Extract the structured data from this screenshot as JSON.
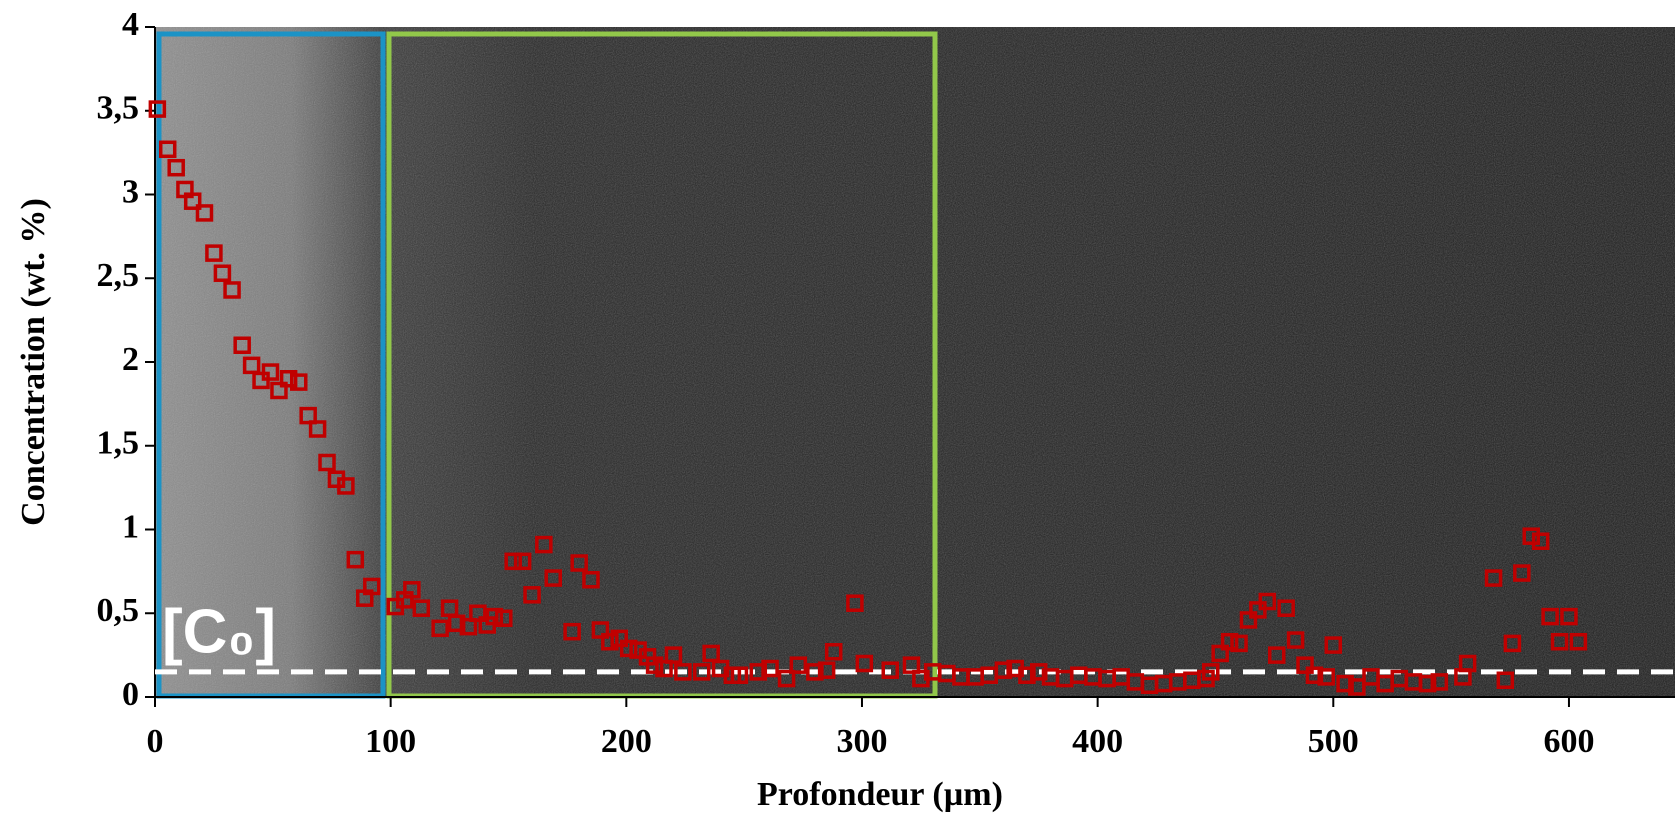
{
  "chart_data": {
    "type": "scatter",
    "x_label": "Profondeur (µm)",
    "y_label": "Concentration (wt. %)",
    "xlim": [
      0,
      645
    ],
    "ylim": [
      0,
      4
    ],
    "xticks": [
      0,
      100,
      200,
      300,
      400,
      500,
      600
    ],
    "yticks": [
      0,
      {
        "value": 0.5,
        "label": "0,5"
      },
      1,
      {
        "value": 1.5,
        "label": "1,5"
      },
      2,
      {
        "value": 2.5,
        "label": "2,5"
      },
      3,
      {
        "value": 3.5,
        "label": "3,5"
      },
      4
    ],
    "reference_line": {
      "value": 0.15,
      "label": "[C₀]",
      "color": "#ffffff"
    },
    "series": [
      {
        "color": "#c00000",
        "x": [
          1,
          5.4,
          9,
          12.7,
          16,
          21,
          25,
          28.6,
          32.7,
          37,
          41,
          45,
          49,
          52.6,
          56.7,
          61,
          65,
          69,
          73,
          77,
          81,
          85,
          89,
          92,
          102,
          106,
          109,
          113,
          121,
          125,
          128,
          133,
          137,
          141,
          144,
          148,
          152,
          156,
          160,
          165,
          169,
          177,
          180,
          185,
          189,
          193,
          197,
          201,
          205,
          209,
          212,
          216,
          220,
          224,
          232,
          236,
          240,
          245,
          248,
          256,
          261,
          268,
          273,
          280,
          285,
          288,
          297,
          301,
          312,
          321,
          325,
          330,
          336,
          342,
          348,
          354,
          360,
          365,
          370,
          375,
          380,
          386,
          392,
          398,
          404,
          410,
          416,
          422,
          428,
          434,
          440,
          446,
          448,
          452,
          456,
          460,
          464,
          468,
          472,
          476,
          480,
          484,
          488,
          492,
          497,
          500,
          505,
          510,
          516,
          522,
          528,
          534,
          540,
          545,
          555,
          557,
          568,
          573,
          576,
          580,
          584,
          588,
          592,
          596,
          600,
          604
        ],
        "values": [
          3.51,
          3.27,
          3.16,
          3.03,
          2.96,
          2.89,
          2.65,
          2.53,
          2.43,
          2.1,
          1.98,
          1.89,
          1.94,
          1.83,
          1.9,
          1.88,
          1.68,
          1.6,
          1.4,
          1.3,
          1.26,
          0.82,
          0.59,
          0.66,
          0.54,
          0.58,
          0.64,
          0.53,
          0.41,
          0.53,
          0.44,
          0.42,
          0.5,
          0.43,
          0.48,
          0.47,
          0.81,
          0.81,
          0.61,
          0.91,
          0.71,
          0.39,
          0.8,
          0.7,
          0.4,
          0.33,
          0.35,
          0.29,
          0.28,
          0.24,
          0.19,
          0.17,
          0.25,
          0.15,
          0.15,
          0.26,
          0.17,
          0.13,
          0.13,
          0.15,
          0.17,
          0.11,
          0.19,
          0.15,
          0.16,
          0.27,
          0.56,
          0.2,
          0.16,
          0.19,
          0.11,
          0.15,
          0.14,
          0.12,
          0.12,
          0.13,
          0.16,
          0.17,
          0.13,
          0.15,
          0.12,
          0.11,
          0.13,
          0.12,
          0.11,
          0.12,
          0.09,
          0.07,
          0.08,
          0.09,
          0.1,
          0.11,
          0.15,
          0.26,
          0.33,
          0.32,
          0.46,
          0.52,
          0.57,
          0.25,
          0.53,
          0.34,
          0.19,
          0.13,
          0.12,
          0.31,
          0.08,
          0.06,
          0.12,
          0.08,
          0.11,
          0.09,
          0.08,
          0.09,
          0.12,
          0.2,
          0.71,
          0.1,
          0.32,
          0.74,
          0.96,
          0.93,
          0.48,
          0.33,
          0.48,
          0.33
        ]
      }
    ]
  }
}
